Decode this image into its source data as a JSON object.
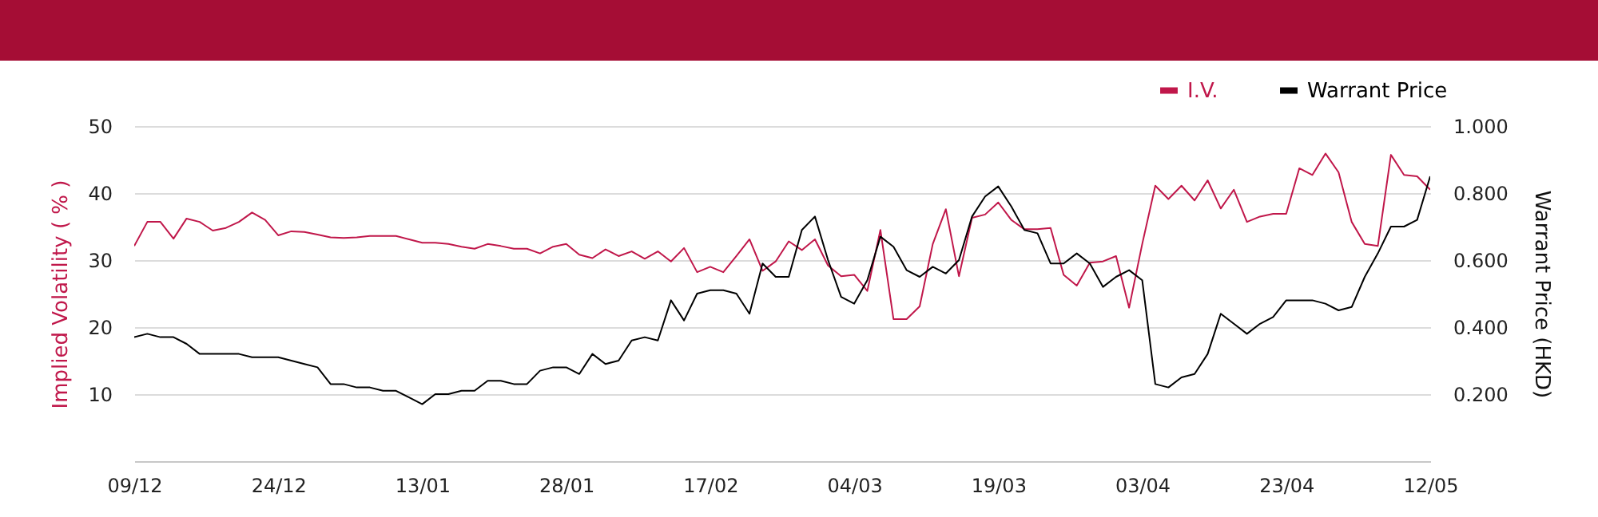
{
  "chart_data": {
    "type": "line",
    "ylabel": "Implied Volatility ( % )",
    "y2label": "Warrant Price (HKD)",
    "categories": [
      "09/12",
      null,
      null,
      null,
      null,
      null,
      null,
      null,
      null,
      null,
      null,
      "24/12",
      null,
      null,
      null,
      null,
      null,
      null,
      null,
      null,
      null,
      null,
      "13/01",
      null,
      null,
      null,
      null,
      null,
      null,
      null,
      null,
      null,
      null,
      "28/01",
      null,
      null,
      null,
      null,
      null,
      null,
      null,
      null,
      null,
      null,
      "17/02",
      null,
      null,
      null,
      null,
      null,
      null,
      null,
      null,
      null,
      null,
      "04/03",
      null,
      null,
      null,
      null,
      null,
      null,
      null,
      null,
      null,
      null,
      "19/03",
      null,
      null,
      null,
      null,
      null,
      null,
      null,
      null,
      null,
      null,
      "03/04",
      null,
      null,
      null,
      null,
      null,
      null,
      null,
      null,
      null,
      null,
      "23/04",
      null,
      null,
      null,
      null,
      null,
      null,
      null,
      null,
      null,
      null,
      "12/05"
    ],
    "series": [
      {
        "name": "I.V.",
        "color": "#c0174a",
        "values": [
          32.1,
          35.7,
          35.7,
          33.2,
          36.2,
          35.7,
          34.4,
          34.8,
          35.7,
          37.1,
          36.0,
          33.7,
          34.3,
          34.2,
          33.8,
          33.4,
          33.3,
          33.4,
          33.6,
          33.6,
          33.6,
          33.1,
          32.6,
          32.6,
          32.4,
          32.0,
          31.7,
          32.4,
          32.1,
          31.7,
          31.7,
          31.0,
          32.0,
          32.4,
          30.8,
          30.3,
          31.6,
          30.6,
          31.3,
          30.2,
          31.3,
          29.8,
          31.8,
          28.2,
          29.0,
          28.2,
          30.6,
          33.1,
          28.4,
          29.8,
          32.8,
          31.5,
          33.1,
          29.2,
          27.6,
          27.8,
          25.4,
          34.5,
          21.2,
          21.2,
          23.1,
          32.4,
          37.6,
          27.6,
          36.3,
          36.8,
          38.6,
          36.0,
          34.6,
          34.6,
          34.8,
          27.8,
          26.2,
          29.6,
          29.8,
          30.6,
          22.9,
          32.4,
          41.1,
          39.1,
          41.1,
          38.9,
          41.9,
          37.7,
          40.5,
          35.7,
          36.5,
          36.9,
          36.9,
          43.7,
          42.7,
          45.9,
          43.1,
          35.7,
          32.4,
          32.1,
          45.7,
          42.7,
          42.5,
          40.5
        ]
      },
      {
        "name": "Warrant Price",
        "color": "#000000",
        "axis": "y2",
        "values": [
          0.37,
          0.38,
          0.37,
          0.37,
          0.35,
          0.32,
          0.32,
          0.32,
          0.32,
          0.31,
          0.31,
          0.31,
          0.3,
          0.29,
          0.28,
          0.23,
          0.23,
          0.22,
          0.22,
          0.21,
          0.21,
          0.19,
          0.17,
          0.2,
          0.2,
          0.21,
          0.21,
          0.24,
          0.24,
          0.23,
          0.23,
          0.27,
          0.28,
          0.28,
          0.26,
          0.32,
          0.29,
          0.3,
          0.36,
          0.37,
          0.36,
          0.48,
          0.42,
          0.5,
          0.51,
          0.51,
          0.5,
          0.44,
          0.59,
          0.55,
          0.55,
          0.69,
          0.73,
          0.6,
          0.49,
          0.47,
          0.54,
          0.67,
          0.64,
          0.57,
          0.55,
          0.58,
          0.56,
          0.6,
          0.73,
          0.79,
          0.82,
          0.76,
          0.69,
          0.68,
          0.59,
          0.59,
          0.62,
          0.59,
          0.52,
          0.55,
          0.57,
          0.54,
          0.23,
          0.22,
          0.25,
          0.26,
          0.32,
          0.44,
          0.41,
          0.38,
          0.41,
          0.43,
          0.48,
          0.48,
          0.48,
          0.47,
          0.45,
          0.46,
          0.55,
          0.62,
          0.7,
          0.7,
          0.72,
          0.85
        ]
      }
    ],
    "ylim": [
      0,
      50
    ],
    "yticks": [
      10,
      20,
      30,
      40,
      50
    ],
    "y2lim": [
      0,
      1
    ],
    "y2ticks": [
      {
        "value": 0.2,
        "label": "0.200"
      },
      {
        "value": 0.4,
        "label": "0.400"
      },
      {
        "value": 0.6,
        "label": "0.600"
      },
      {
        "value": 0.8,
        "label": "0.800"
      },
      {
        "value": 1.0,
        "label": "1.000"
      }
    ],
    "grid": "y",
    "legend": "top right",
    "marker": "none",
    "line_style": "solid"
  }
}
